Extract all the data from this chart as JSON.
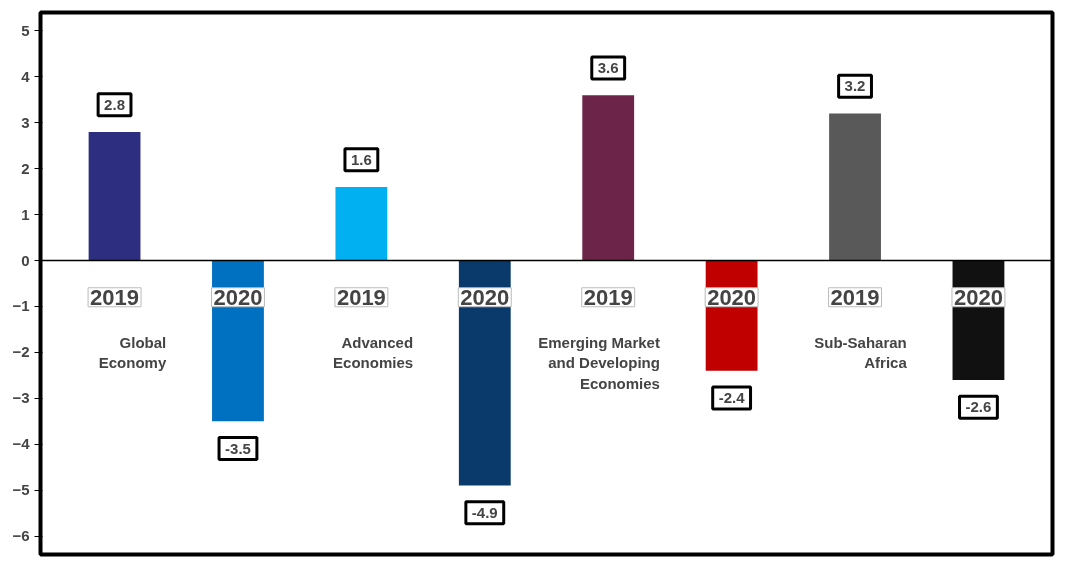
{
  "chart_data": {
    "type": "bar",
    "categories": [
      "2019",
      "2020",
      "2019",
      "2020",
      "2019",
      "2020",
      "2019",
      "2020"
    ],
    "values": [
      2.8,
      -3.5,
      1.6,
      -4.9,
      3.6,
      -2.4,
      3.2,
      -2.6
    ],
    "colors": [
      "#2e2e80",
      "#0070c0",
      "#00b0f0",
      "#0a3a6b",
      "#6d2449",
      "#c00000",
      "#595959",
      "#111111"
    ],
    "data_labels": true,
    "annotations": [
      "Global\nEconomy",
      "Advanced\nEconomies",
      "Emerging Market\nand Developing\nEconomies",
      "Sub-Saharan\nAfrica"
    ],
    "ylim": [
      -6.4,
      5.4
    ],
    "yticks": [
      -6,
      -5,
      -4,
      -3,
      -2,
      -1,
      0,
      1,
      2,
      3,
      4,
      5
    ],
    "grid": false
  }
}
